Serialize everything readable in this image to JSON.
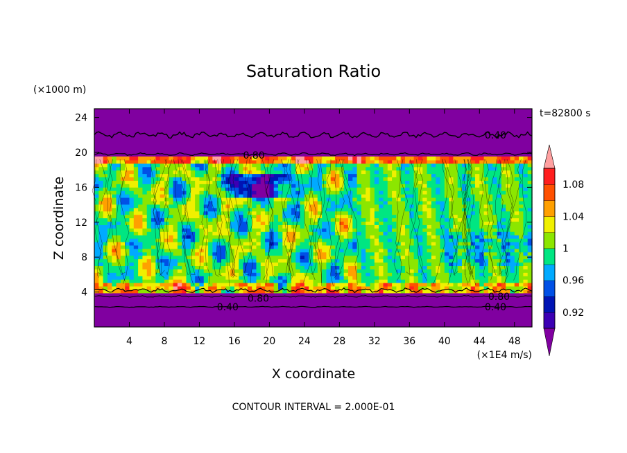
{
  "chart_data": {
    "type": "heatmap",
    "title": "Saturation Ratio",
    "xlabel": "X coordinate",
    "ylabel": "Z coordinate",
    "x_unit": "(×1E4 m/s)",
    "y_unit": "(×1000 m)",
    "time_label": "t=82800 s",
    "footer": "CONTOUR INTERVAL = 2.000E-01",
    "xlim": [
      0,
      50
    ],
    "ylim": [
      0,
      25
    ],
    "x_ticks": [
      4,
      8,
      12,
      16,
      20,
      24,
      28,
      32,
      36,
      40,
      44,
      48
    ],
    "y_ticks": [
      4,
      8,
      12,
      16,
      20,
      24
    ],
    "x_tick_labels": [
      "4",
      "8",
      "12",
      "16",
      "20",
      "24",
      "28",
      "32",
      "36",
      "40",
      "44",
      "48"
    ],
    "y_tick_labels": [
      "4",
      "8",
      "12",
      "16",
      "20",
      "24"
    ],
    "colorbar": {
      "levels": [
        0.9,
        0.92,
        0.94,
        0.96,
        0.98,
        1.0,
        1.02,
        1.04,
        1.06,
        1.08,
        1.1
      ],
      "labels": [
        "0.92",
        "0.96",
        "1",
        "1.04",
        "1.08"
      ],
      "label_values": [
        0.92,
        0.96,
        1.0,
        1.04,
        1.08
      ],
      "colors": [
        "#8000a0",
        "#3c00b4",
        "#0014b4",
        "#0050e6",
        "#00aaff",
        "#00e682",
        "#8ce600",
        "#f0f000",
        "#ffa000",
        "#ff5000",
        "#ff1e1e",
        "#ffa0a0"
      ],
      "under_color": "#8000a0",
      "over_color": "#ffa0a0"
    },
    "contour_labels": [
      {
        "text": "0.40",
        "x": 44.6,
        "z": 22.0
      },
      {
        "text": "0.80",
        "x": 17.0,
        "z": 19.7
      },
      {
        "text": "0.80",
        "x": 45.0,
        "z": 3.5
      },
      {
        "text": "0.80",
        "x": 17.5,
        "z": 3.3
      },
      {
        "text": "0.40",
        "x": 14.0,
        "z": 2.3
      },
      {
        "text": "0.40",
        "x": 44.6,
        "z": 2.3
      }
    ]
  }
}
